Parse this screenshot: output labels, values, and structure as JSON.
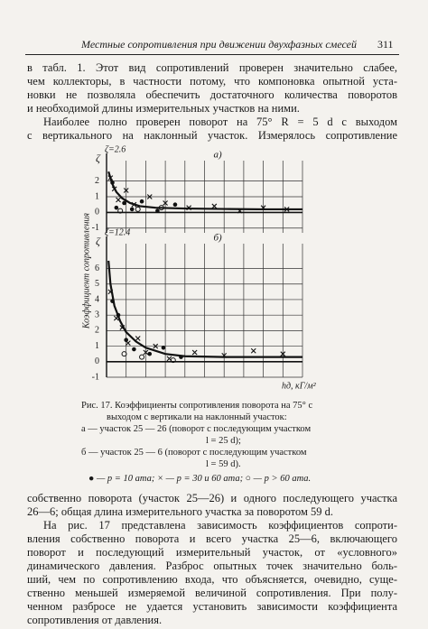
{
  "header": {
    "title": "Местные сопротивления при движении двухфазных смесей",
    "page": "311"
  },
  "text_top": [
    [
      "в табл. 1. Этот вид сопротивлений проверен значительно слабее,",
      "чем коллекторы, в частности потому, что компоновка опытной уста-",
      "новки не позволяла обеспечить достаточного количества поворотов",
      "и необходимой длины измерительных участков на ними."
    ],
    [
      "Наиболее полно проверен поворот на 75° R = 5 d с выходом",
      "с вертикального на наклонный участок. Измерялось сопротивление"
    ]
  ],
  "figure": {
    "y_label": "Коэффициент сопротивления",
    "x_label": "hд, кГ/м²"
  },
  "chart_data": [
    {
      "type": "scatter",
      "panel": "а)",
      "annotation": "ζ=2.6",
      "y_symbol": "ζ",
      "xlim": [
        0,
        10
      ],
      "ylim": [
        -1.3,
        3.3
      ],
      "yticks": [
        2,
        1,
        0,
        -1
      ],
      "curve": {
        "x": [
          0.1,
          0.3,
          0.5,
          0.8,
          1.2,
          1.7,
          2.5,
          4,
          6,
          8,
          10
        ],
        "values": [
          2.6,
          1.8,
          1.3,
          0.9,
          0.6,
          0.4,
          0.3,
          0.25,
          0.22,
          0.2,
          0.2
        ]
      },
      "series": [
        {
          "marker": "x",
          "x": [
            0.2,
            0.4,
            0.6,
            1.0,
            1.4,
            2.2,
            3.0,
            4.2,
            5.5,
            6.8,
            8.0,
            9.2
          ],
          "values": [
            2.2,
            1.5,
            0.8,
            1.4,
            0.5,
            1.0,
            0.6,
            0.3,
            0.4,
            0.1,
            0.3,
            0.2
          ]
        },
        {
          "marker": "dot",
          "x": [
            0.3,
            0.5,
            0.9,
            1.3,
            1.8,
            2.6,
            3.5
          ],
          "values": [
            1.9,
            0.3,
            0.6,
            0.2,
            0.7,
            0.1,
            0.5
          ]
        },
        {
          "marker": "circle",
          "x": [
            0.7,
            1.6,
            2.8
          ],
          "values": [
            0.1,
            0.2,
            0.3
          ]
        }
      ]
    },
    {
      "type": "scatter",
      "panel": "б)",
      "annotation": "ζ=12.4",
      "y_symbol": "ζ",
      "xlim": [
        0,
        10
      ],
      "ylim": [
        -1,
        7.6
      ],
      "yticks": [
        6,
        5,
        4,
        3,
        2,
        1,
        0,
        -1
      ],
      "curve": {
        "x": [
          0.1,
          0.2,
          0.4,
          0.7,
          1,
          1.5,
          2,
          3,
          4,
          6,
          8,
          10
        ],
        "values": [
          6.5,
          5,
          3.6,
          2.6,
          1.9,
          1.3,
          0.9,
          0.5,
          0.35,
          0.3,
          0.3,
          0.3
        ]
      },
      "series": [
        {
          "marker": "x",
          "x": [
            0.2,
            0.5,
            0.8,
            1.1,
            1.6,
            2.0,
            2.5,
            3.2,
            4.5,
            6.0,
            7.5,
            9.0
          ],
          "values": [
            4.5,
            2.8,
            2.2,
            1.2,
            1.5,
            0.6,
            1.0,
            0.2,
            0.6,
            0.4,
            0.7,
            0.5
          ]
        },
        {
          "marker": "dot",
          "x": [
            0.3,
            0.6,
            1.0,
            1.4,
            2.2,
            2.9,
            3.8
          ],
          "values": [
            3.9,
            3.0,
            1.4,
            0.8,
            0.5,
            0.9,
            0.3
          ]
        },
        {
          "marker": "circle",
          "x": [
            0.9,
            1.8,
            3.4
          ],
          "values": [
            0.5,
            0.3,
            0.1
          ]
        }
      ]
    }
  ],
  "caption": [
    "Рис. 17. Коэффициенты сопротивления поворота на 75° с",
    "выходом с вертикали на наклонный участок:",
    "а — участок 25 — 26 (поворот с последующим участком",
    "l = 25 d);",
    "б — участок 25 — 6 (поворот с последующим участком",
    "l = 59 d).",
    "● — p = 10 ата; × — p = 30 и 60 ата; ○ — p > 60 ата."
  ],
  "text_bottom": [
    [
      "собственно поворота (участок 25—26) и одного последующего участка",
      "26—6; общая длина измерительного участка за поворотом 59 d."
    ],
    [
      "На рис. 17 представлена зависимость коэффициентов сопроти-",
      "вления собственно поворота и всего участка 25—6, включающего",
      "поворот и последующий измерительный участок, от «условного»",
      "динамического давления. Разброс опытных точек значительно боль-",
      "ший, чем по сопротивлению входа, что объясняется, очевидно, суще-",
      "ственно меньшей измеряемой величиной сопротивления. При полу-",
      "ченном разбросе не удается установить зависимости коэффициента",
      "сопротивления от давления."
    ]
  ]
}
